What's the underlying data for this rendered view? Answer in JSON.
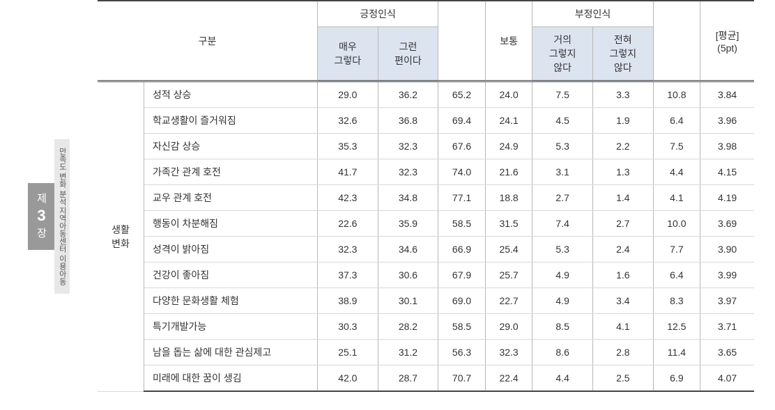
{
  "side": {
    "chapter_prefix": "제",
    "chapter_num": "3",
    "chapter_suffix": "장",
    "sub1": "지역아동센터 이용아동",
    "sub2": "만족도 변화 분석"
  },
  "headers": {
    "gubun": "구분",
    "pos_group": "긍정인식",
    "neg_group": "부정인식",
    "avg": "[평균]\n(5pt)",
    "normal": "보통",
    "pos_a": "매우\n그렇다",
    "pos_b": "그런\n편이다",
    "neg_a": "거의\n그렇지\n않다",
    "neg_b": "전혀\n그렇지\n않다"
  },
  "group_label": "생활\n변화",
  "rows": [
    {
      "label": "성적 상승",
      "pa": "29.0",
      "pb": "36.2",
      "ps": "65.2",
      "n": "24.0",
      "na": "7.5",
      "nb": "3.3",
      "ns": "10.8",
      "avg": "3.84"
    },
    {
      "label": "학교생활이 즐거워짐",
      "pa": "32.6",
      "pb": "36.8",
      "ps": "69.4",
      "n": "24.1",
      "na": "4.5",
      "nb": "1.9",
      "ns": "6.4",
      "avg": "3.96"
    },
    {
      "label": "자신감 상승",
      "pa": "35.3",
      "pb": "32.3",
      "ps": "67.6",
      "n": "24.9",
      "na": "5.3",
      "nb": "2.2",
      "ns": "7.5",
      "avg": "3.98"
    },
    {
      "label": "가족간 관계 호전",
      "pa": "41.7",
      "pb": "32.3",
      "ps": "74.0",
      "n": "21.6",
      "na": "3.1",
      "nb": "1.3",
      "ns": "4.4",
      "avg": "4.15"
    },
    {
      "label": "교우 관계 호전",
      "pa": "42.3",
      "pb": "34.8",
      "ps": "77.1",
      "n": "18.8",
      "na": "2.7",
      "nb": "1.4",
      "ns": "4.1",
      "avg": "4.19"
    },
    {
      "label": "행동이 차분해짐",
      "pa": "22.6",
      "pb": "35.9",
      "ps": "58.5",
      "n": "31.5",
      "na": "7.4",
      "nb": "2.7",
      "ns": "10.0",
      "avg": "3.69"
    },
    {
      "label": "성격이 밝아짐",
      "pa": "32.3",
      "pb": "34.6",
      "ps": "66.9",
      "n": "25.4",
      "na": "5.3",
      "nb": "2.4",
      "ns": "7.7",
      "avg": "3.90"
    },
    {
      "label": "건강이 좋아짐",
      "pa": "37.3",
      "pb": "30.6",
      "ps": "67.9",
      "n": "25.7",
      "na": "4.9",
      "nb": "1.6",
      "ns": "6.4",
      "avg": "3.99"
    },
    {
      "label": "다양한 문화생활 체험",
      "pa": "38.9",
      "pb": "30.1",
      "ps": "69.0",
      "n": "22.7",
      "na": "4.9",
      "nb": "3.4",
      "ns": "8.3",
      "avg": "3.97"
    },
    {
      "label": "특기개발가능",
      "pa": "30.3",
      "pb": "28.2",
      "ps": "58.5",
      "n": "29.0",
      "na": "8.5",
      "nb": "4.1",
      "ns": "12.5",
      "avg": "3.71"
    },
    {
      "label": "남을 돕는 삶에 대한 관심제고",
      "pa": "25.1",
      "pb": "31.2",
      "ps": "56.3",
      "n": "32.3",
      "na": "8.6",
      "nb": "2.8",
      "ns": "11.4",
      "avg": "3.65"
    },
    {
      "label": "미래에 대한 꿈이 생김",
      "pa": "42.0",
      "pb": "28.7",
      "ps": "70.7",
      "n": "22.4",
      "na": "4.4",
      "nb": "2.5",
      "ns": "6.9",
      "avg": "4.07"
    }
  ],
  "colors": {
    "sub_head_bg": "#dce4f0",
    "border": "#b8b8b8",
    "row_border": "#d8d8d8",
    "heavy_border": "#444444",
    "side_gray": "#999999",
    "side_light": "#e8e8e8"
  }
}
